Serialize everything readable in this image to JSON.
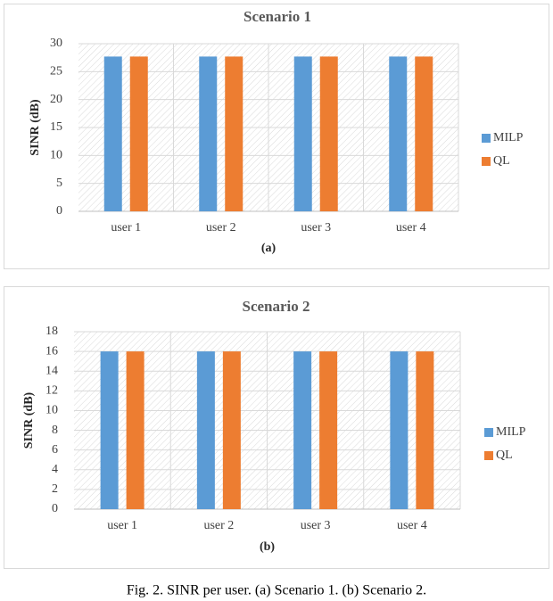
{
  "chart_data": [
    {
      "type": "bar",
      "title": "Scenario 1",
      "ylabel": "SINR (dB)",
      "label": "(a)",
      "categories": [
        "user 1",
        "user 2",
        "user 3",
        "user 4"
      ],
      "series": [
        {
          "name": "MILP",
          "color": "#5b9bd5",
          "values": [
            27.7,
            27.7,
            27.7,
            27.7
          ]
        },
        {
          "name": "QL",
          "color": "#ed7d31",
          "values": [
            27.7,
            27.7,
            27.7,
            27.7
          ]
        }
      ],
      "ylim": [
        0,
        30
      ],
      "yticks": [
        0,
        5,
        10,
        15,
        20,
        25,
        30
      ],
      "grid": true,
      "legend": "right"
    },
    {
      "type": "bar",
      "title": "Scenario 2",
      "ylabel": "SINR (dB)",
      "label": "(b)",
      "categories": [
        "user 1",
        "user 2",
        "user 3",
        "user 4"
      ],
      "series": [
        {
          "name": "MILP",
          "color": "#5b9bd5",
          "values": [
            16,
            16,
            16,
            16
          ]
        },
        {
          "name": "QL",
          "color": "#ed7d31",
          "values": [
            16,
            16,
            16,
            16
          ]
        }
      ],
      "ylim": [
        0,
        18
      ],
      "yticks": [
        0,
        2,
        4,
        6,
        8,
        10,
        12,
        14,
        16,
        18
      ],
      "grid": true,
      "legend": "right"
    }
  ],
  "caption": "Fig. 2.  SINR per user. (a) Scenario 1. (b) Scenario 2."
}
